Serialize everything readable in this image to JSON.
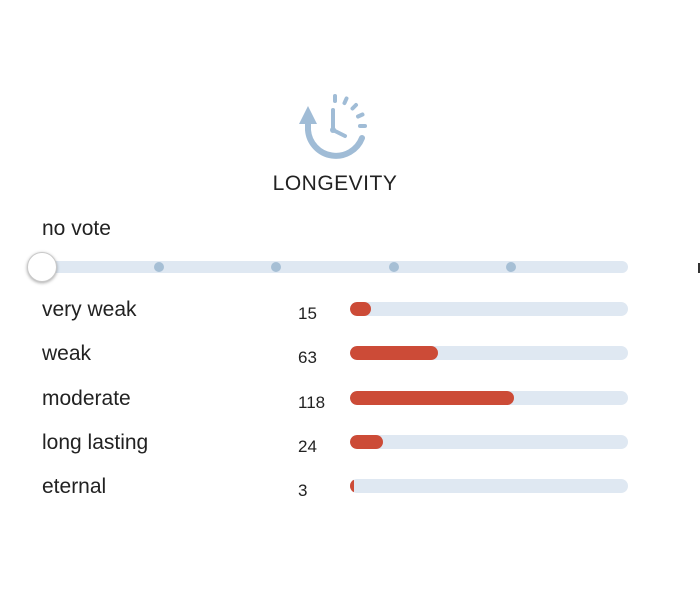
{
  "header": {
    "title": "LONGEVITY",
    "icon": "clock-rewind-icon",
    "icon_color": "#a0bcd6"
  },
  "vote": {
    "label": "no vote",
    "slider_positions": 6,
    "selected_index": 0
  },
  "colors": {
    "bar_fill": "#cc4b37",
    "track": "#dfe8f2"
  },
  "bar_max": 200,
  "rows": [
    {
      "label": "very weak",
      "count": "15",
      "value": 15
    },
    {
      "label": "weak",
      "count": "63",
      "value": 63
    },
    {
      "label": "moderate",
      "count": "118",
      "value": 118
    },
    {
      "label": "long lasting",
      "count": "24",
      "value": 24
    },
    {
      "label": "eternal",
      "count": "3",
      "value": 3
    }
  ]
}
